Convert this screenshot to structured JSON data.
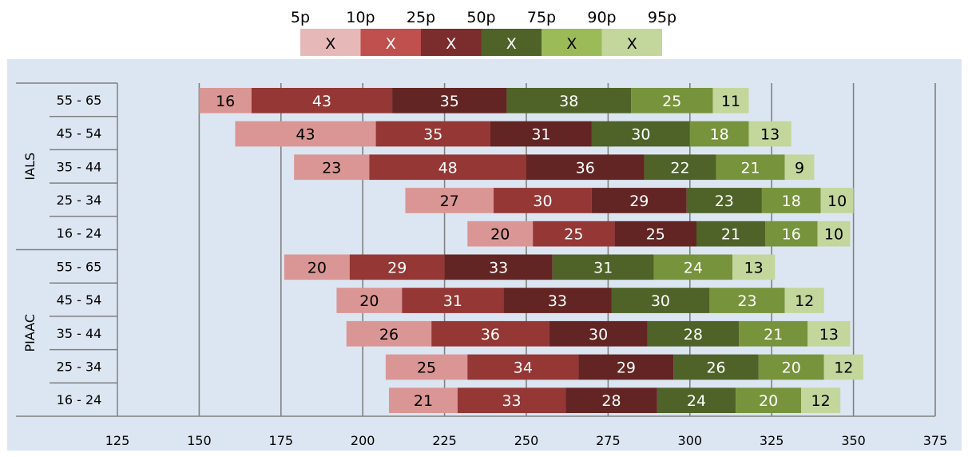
{
  "legend": {
    "percentile_labels": [
      "5p",
      "10p",
      "25p",
      "50p",
      "75p",
      "90p",
      "95p"
    ],
    "box_labels": [
      "X",
      "X",
      "X",
      "X",
      "X",
      "X"
    ],
    "box_colors": [
      "#e6b9b8",
      "#c0504d",
      "#7b2c2c",
      "#4f6228",
      "#9bbb59",
      "#c3d69b"
    ]
  },
  "chart_data": {
    "type": "bar",
    "orientation": "horizontal",
    "stacked": true,
    "x_axis": {
      "min": 125,
      "max": 375,
      "ticks": [
        125,
        150,
        175,
        200,
        225,
        250,
        275,
        300,
        325,
        350,
        375
      ]
    },
    "grid": "vertical",
    "segment_colors": [
      "#da9694",
      "#953735",
      "#632523",
      "#4f6228",
      "#77933c",
      "#c3d69b"
    ],
    "groups": [
      {
        "name": "IALS",
        "rows": [
          {
            "category": "55 - 65",
            "start": 150,
            "segments": [
              16,
              43,
              35,
              38,
              25,
              11
            ]
          },
          {
            "category": "45 - 54",
            "start": 161,
            "segments": [
              43,
              35,
              31,
              30,
              18,
              13
            ]
          },
          {
            "category": "35 - 44",
            "start": 179,
            "segments": [
              23,
              48,
              36,
              22,
              21,
              9
            ]
          },
          {
            "category": "25 - 34",
            "start": 213,
            "segments": [
              27,
              30,
              29,
              23,
              18,
              10
            ]
          },
          {
            "category": "16 - 24",
            "start": 232,
            "segments": [
              20,
              25,
              25,
              21,
              16,
              10
            ]
          }
        ]
      },
      {
        "name": "PIAAC",
        "rows": [
          {
            "category": "55 - 65",
            "start": 176,
            "segments": [
              20,
              29,
              33,
              31,
              24,
              13
            ]
          },
          {
            "category": "45 - 54",
            "start": 192,
            "segments": [
              20,
              31,
              33,
              30,
              23,
              12
            ]
          },
          {
            "category": "35 - 44",
            "start": 195,
            "segments": [
              26,
              36,
              30,
              28,
              21,
              13
            ]
          },
          {
            "category": "25 - 34",
            "start": 207,
            "segments": [
              25,
              34,
              29,
              26,
              20,
              12
            ]
          },
          {
            "category": "16 - 24",
            "start": 208,
            "segments": [
              21,
              33,
              28,
              24,
              20,
              12
            ]
          }
        ]
      }
    ]
  }
}
